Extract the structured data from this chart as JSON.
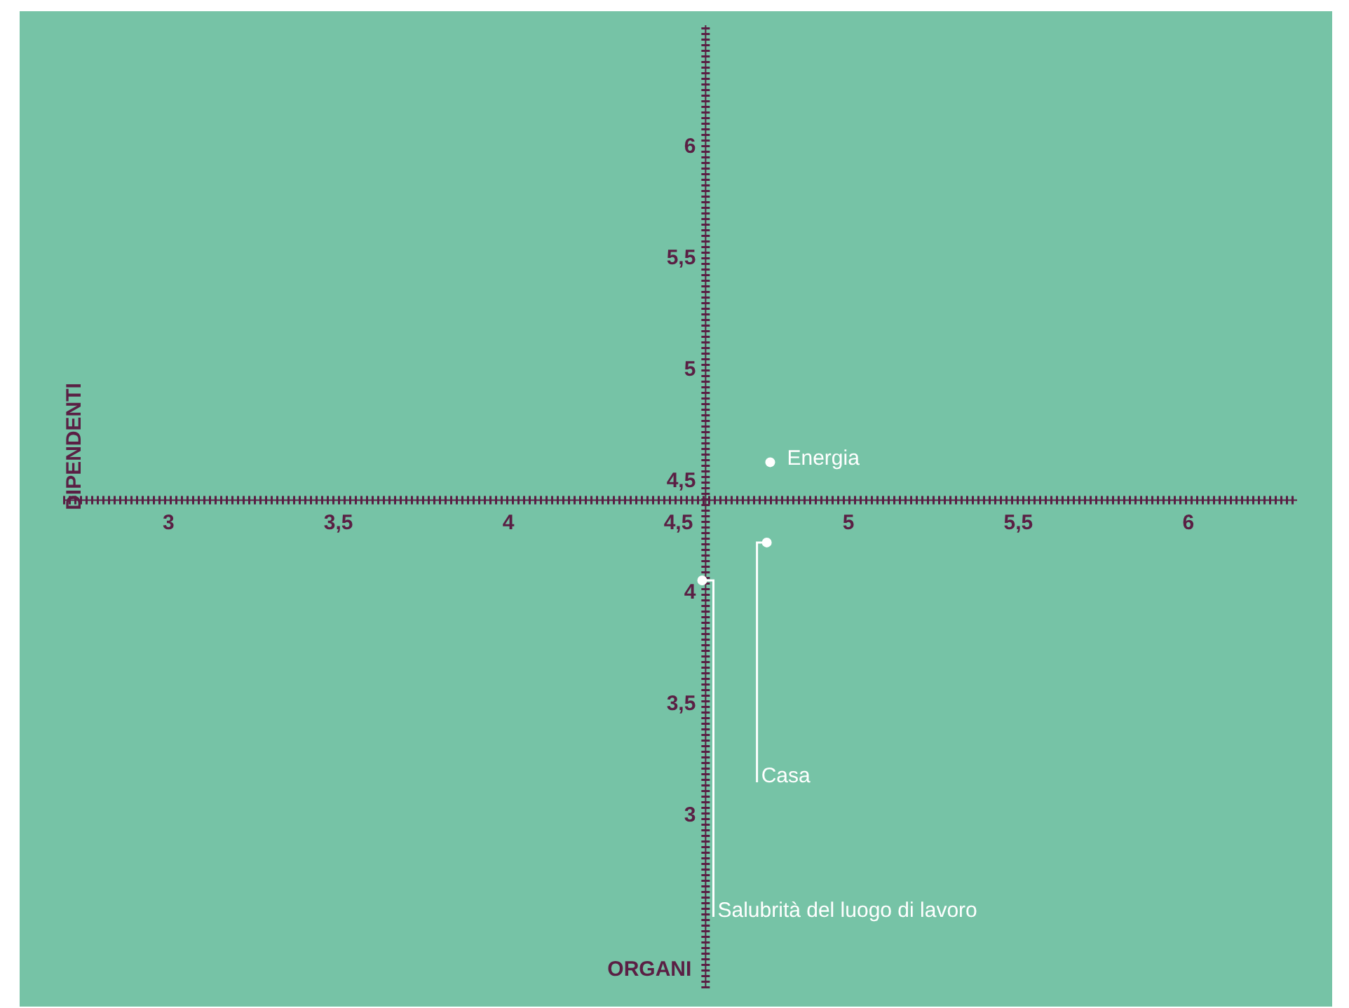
{
  "chart_data": {
    "type": "scatter",
    "xlabel": "ORGANI",
    "ylabel": "DIPENDENTI",
    "xlim": [
      2.69,
      6.32
    ],
    "ylim": [
      2.22,
      6.54
    ],
    "xticks": [
      3,
      {
        "value": 3.5,
        "label": "3,5"
      },
      4,
      {
        "value": 4.5,
        "label": "4,5"
      },
      5,
      {
        "value": 5.5,
        "label": "5,5"
      },
      6
    ],
    "yticks": [
      3,
      {
        "value": 3.5,
        "label": "3,5"
      },
      4,
      {
        "value": 4.5,
        "label": "4,5"
      },
      5,
      {
        "value": 5.5,
        "label": "5,5"
      },
      6
    ],
    "ref_lines": [
      {
        "axis": "x",
        "value": 4.58,
        "color": "#5a1f44"
      },
      {
        "axis": "y",
        "value": 4.41,
        "color": "#5a1f44"
      }
    ],
    "marker": "circle",
    "grid": false,
    "legend": false,
    "series": [
      {
        "name": "Energia",
        "color": "#ffffff",
        "x": [
          4.77
        ],
        "values": [
          4.58
        ]
      },
      {
        "name": "Casa",
        "color": "#ffffff",
        "x": [
          4.76
        ],
        "values": [
          4.22
        ]
      },
      {
        "name": "Salubrità del luogo di lavoro",
        "color": "#ffffff",
        "x": [
          4.57
        ],
        "values": [
          4.05
        ]
      }
    ]
  }
}
